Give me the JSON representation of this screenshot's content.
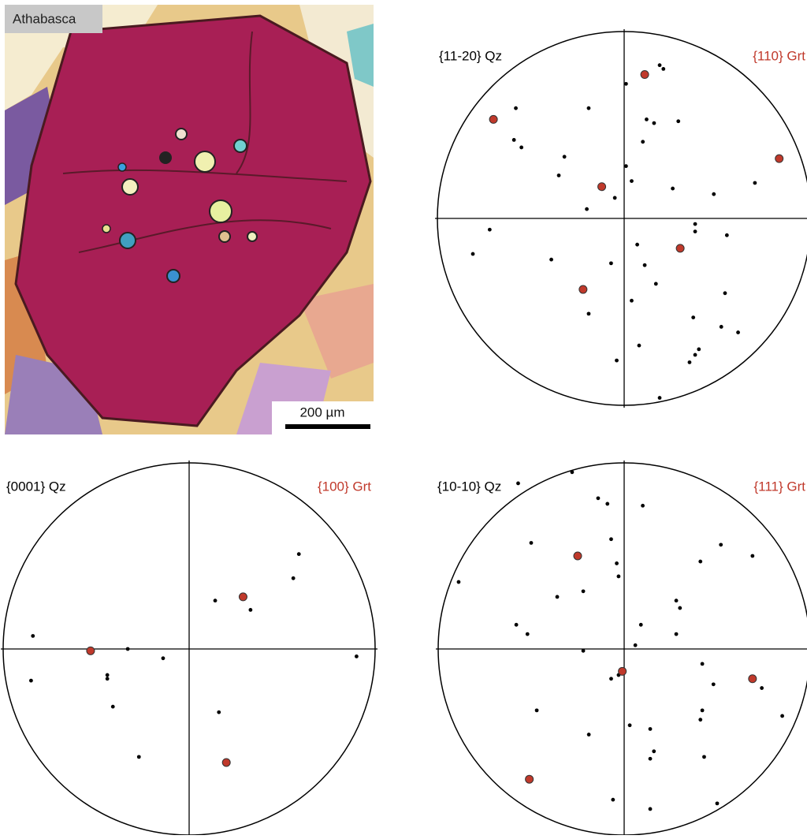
{
  "micrograph": {
    "label": "Athabasca",
    "scale_bar": "200 µm"
  },
  "chart_data": [
    {
      "type": "scatter",
      "xlim": [
        -1,
        1
      ],
      "ylim": [
        -1,
        1
      ],
      "series": [
        {
          "name": "{11-20} Qz",
          "color": "#000000",
          "x": [
            0.19,
            0.21,
            0.01,
            -0.58,
            -0.19,
            0.12,
            0.16,
            0.29,
            0.1,
            -0.59,
            -0.55,
            0.01,
            -0.35,
            -0.32,
            0.04,
            0.26,
            0.7,
            0.48,
            -0.05,
            -0.2,
            0.38,
            0.38,
            -0.72,
            0.55,
            0.07,
            -0.81,
            -0.39,
            -0.07,
            0.11,
            0.17,
            0.54,
            -0.19,
            0.04,
            0.37,
            0.52,
            0.61,
            0.08,
            0.4,
            0.38,
            0.35,
            -0.04,
            0.19
          ],
          "y": [
            0.82,
            0.8,
            0.72,
            0.59,
            0.59,
            0.53,
            0.51,
            0.52,
            0.41,
            0.42,
            0.38,
            0.28,
            0.23,
            0.33,
            0.2,
            0.16,
            0.19,
            0.13,
            0.11,
            0.05,
            -0.03,
            -0.07,
            -0.06,
            -0.09,
            -0.14,
            -0.19,
            -0.22,
            -0.24,
            -0.25,
            -0.35,
            -0.4,
            -0.51,
            -0.44,
            -0.53,
            -0.58,
            -0.61,
            -0.68,
            -0.7,
            -0.73,
            -0.77,
            -0.76,
            -0.96
          ]
        },
        {
          "name": "{110} Grt",
          "color": "#c0392b",
          "x": [
            0.11,
            -0.7,
            0.83,
            -0.12,
            0.3,
            -0.22
          ],
          "y": [
            0.77,
            0.53,
            0.32,
            0.17,
            -0.16,
            -0.38
          ]
        }
      ]
    },
    {
      "type": "scatter",
      "xlim": [
        -1,
        1
      ],
      "ylim": [
        -1,
        1
      ],
      "series": [
        {
          "name": "{0001} Qz",
          "color": "#000000",
          "x": [
            0.59,
            0.56,
            0.14,
            0.33,
            -0.84,
            -0.33,
            -0.14,
            0.9,
            -0.44,
            -0.44,
            -0.85,
            -0.41,
            0.16,
            -0.27
          ],
          "y": [
            0.51,
            0.38,
            0.26,
            0.21,
            0.07,
            0.0,
            -0.05,
            -0.04,
            -0.14,
            -0.16,
            -0.17,
            -0.31,
            -0.34,
            -0.58
          ]
        },
        {
          "name": "{100} Grt",
          "color": "#c0392b",
          "x": [
            0.29,
            -0.53,
            0.2
          ],
          "y": [
            0.28,
            -0.01,
            -0.61
          ]
        }
      ]
    },
    {
      "type": "scatter",
      "xlim": [
        -1,
        1
      ],
      "ylim": [
        -1,
        1
      ],
      "series": [
        {
          "name": "{10-10} Qz",
          "color": "#000000",
          "x": [
            -0.28,
            -0.57,
            -0.14,
            -0.09,
            0.1,
            -0.5,
            0.52,
            -0.07,
            0.69,
            0.41,
            -0.04,
            -0.03,
            -0.89,
            -0.22,
            -0.36,
            0.28,
            0.3,
            0.09,
            -0.58,
            -0.52,
            0.28,
            0.06,
            -0.22,
            0.42,
            -0.07,
            -0.03,
            0.48,
            0.74,
            0.85,
            -0.47,
            0.42,
            0.41,
            0.03,
            0.14,
            -0.19,
            0.16,
            0.14,
            0.43,
            -0.06,
            0.14,
            0.5
          ],
          "y": [
            0.95,
            0.89,
            0.81,
            0.78,
            0.77,
            0.57,
            0.56,
            0.59,
            0.5,
            0.47,
            0.46,
            0.39,
            0.36,
            0.31,
            0.28,
            0.26,
            0.22,
            0.13,
            0.13,
            0.08,
            0.08,
            0.02,
            -0.01,
            -0.08,
            -0.16,
            -0.14,
            -0.19,
            -0.21,
            -0.36,
            -0.33,
            -0.33,
            -0.38,
            -0.41,
            -0.43,
            -0.46,
            -0.55,
            -0.59,
            -0.58,
            -0.81,
            -0.86,
            -0.83
          ]
        },
        {
          "name": "{111} Grt",
          "color": "#c0392b",
          "x": [
            -0.25,
            -0.01,
            0.69,
            -0.51
          ],
          "y": [
            0.5,
            -0.12,
            -0.16,
            -0.7
          ]
        }
      ]
    }
  ]
}
